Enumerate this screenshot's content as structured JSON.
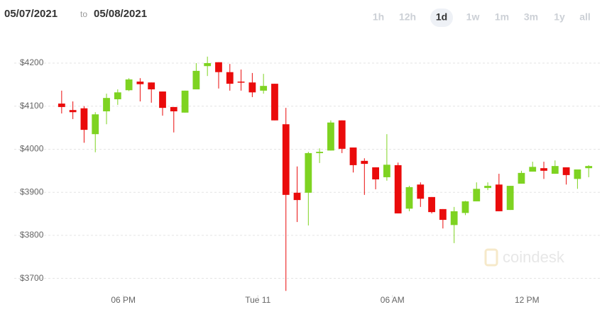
{
  "header": {
    "from": "05/07/2021",
    "sep": "to",
    "to": "05/08/2021",
    "ranges": [
      "1h",
      "12h",
      "1d",
      "1w",
      "1m",
      "3m",
      "1y",
      "all"
    ],
    "selected_range": "1d"
  },
  "watermark": "coindesk",
  "chart_data": {
    "type": "candlestick",
    "x": [
      0,
      1,
      2,
      3,
      4,
      5,
      6,
      7,
      8,
      9,
      10,
      11,
      12,
      13,
      14,
      15,
      16,
      17,
      18,
      19,
      20,
      21,
      22,
      23,
      24,
      25,
      26,
      27,
      28,
      29,
      30,
      31,
      32,
      33,
      34,
      35,
      36,
      37,
      38,
      39,
      40,
      41,
      42,
      43,
      44,
      45,
      46,
      47
    ],
    "open": [
      4106,
      4091,
      4095,
      4035,
      4088,
      4116,
      4137,
      4157,
      4155,
      4134,
      4098,
      4085,
      4139,
      4193,
      4202,
      4179,
      4157,
      4155,
      4136,
      4152,
      4058,
      3899,
      3899,
      3991,
      3997,
      4067,
      4004,
      3973,
      3958,
      3935,
      3963,
      3862,
      3918,
      3889,
      3861,
      3824,
      3852,
      3879,
      3910,
      3918,
      3859,
      3920,
      3948,
      3956,
      3943,
      3958,
      3931,
      3956
    ],
    "high": [
      4136,
      4111,
      4100,
      4086,
      4129,
      4139,
      4165,
      4165,
      4155,
      4134,
      4098,
      4136,
      4200,
      4215,
      4202,
      4198,
      4185,
      4177,
      4175,
      4152,
      4096,
      3960,
      3994,
      4002,
      4067,
      4067,
      4004,
      3979,
      3958,
      4035,
      3969,
      3915,
      3923,
      3889,
      3861,
      3866,
      3880,
      3923,
      3923,
      3943,
      3915,
      3950,
      3971,
      3971,
      3974,
      3958,
      3953,
      3963
    ],
    "low": [
      4083,
      4070,
      4015,
      3993,
      4058,
      4103,
      4135,
      4111,
      4108,
      4078,
      4039,
      4085,
      4139,
      4170,
      4141,
      4136,
      4136,
      4121,
      4129,
      4067,
      3671,
      3831,
      3823,
      3968,
      3997,
      3991,
      3946,
      3894,
      3907,
      3927,
      3851,
      3856,
      3866,
      3851,
      3816,
      3782,
      3847,
      3879,
      3905,
      3856,
      3859,
      3920,
      3948,
      3931,
      3943,
      3918,
      3908,
      3935
    ],
    "close": [
      4098,
      4086,
      4045,
      4081,
      4119,
      4132,
      4162,
      4151,
      4139,
      4096,
      4088,
      4136,
      4182,
      4200,
      4179,
      4152,
      4155,
      4132,
      4147,
      4067,
      3894,
      3882,
      3991,
      3994,
      4062,
      4001,
      3963,
      3966,
      3930,
      3964,
      3851,
      3912,
      3885,
      3854,
      3836,
      3856,
      3879,
      3908,
      3915,
      3856,
      3915,
      3945,
      3959,
      3950,
      3961,
      3940,
      3953,
      3961
    ],
    "up_color": "#7ed321",
    "down_color": "#ea0b0b",
    "xlim": [
      -0.75,
      48
    ],
    "xticks": [
      {
        "value": 5.5,
        "label": "06 PM"
      },
      {
        "value": 17.5,
        "label": "Tue 11"
      },
      {
        "value": 29.5,
        "label": "06 AM"
      },
      {
        "value": 41.5,
        "label": "12 PM"
      }
    ],
    "ylim": [
      3655,
      4223
    ],
    "yticks": [
      {
        "value": 3700,
        "label": "$3700"
      },
      {
        "value": 3800,
        "label": "$3800"
      },
      {
        "value": 3900,
        "label": "$3900"
      },
      {
        "value": 4000,
        "label": "$4000"
      },
      {
        "value": 4100,
        "label": "$4100"
      },
      {
        "value": 4200,
        "label": "$4200"
      }
    ],
    "grid": true
  }
}
